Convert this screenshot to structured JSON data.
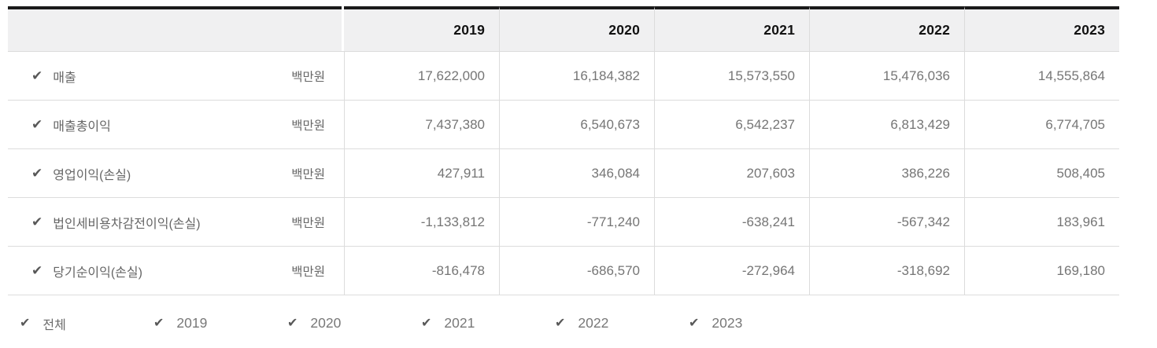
{
  "icons": {
    "check": "✔"
  },
  "table": {
    "years": [
      "2019",
      "2020",
      "2021",
      "2022",
      "2023"
    ],
    "rows": [
      {
        "label": "매출",
        "unit": "백만원",
        "checked": true,
        "values": [
          "17,622,000",
          "16,184,382",
          "15,573,550",
          "15,476,036",
          "14,555,864"
        ]
      },
      {
        "label": "매출총이익",
        "unit": "백만원",
        "checked": true,
        "values": [
          "7,437,380",
          "6,540,673",
          "6,542,237",
          "6,813,429",
          "6,774,705"
        ]
      },
      {
        "label": "영업이익(손실)",
        "unit": "백만원",
        "checked": true,
        "values": [
          "427,911",
          "346,084",
          "207,603",
          "386,226",
          "508,405"
        ]
      },
      {
        "label": "법인세비용차감전이익(손실)",
        "unit": "백만원",
        "checked": true,
        "values": [
          "-1,133,812",
          "-771,240",
          "-638,241",
          "-567,342",
          "183,961"
        ]
      },
      {
        "label": "당기순이익(손실)",
        "unit": "백만원",
        "checked": true,
        "values": [
          "-816,478",
          "-686,570",
          "-272,964",
          "-318,692",
          "169,180"
        ]
      }
    ]
  },
  "filters": {
    "items": [
      {
        "label": "전체",
        "checked": true
      },
      {
        "label": "2019",
        "checked": true
      },
      {
        "label": "2020",
        "checked": true
      },
      {
        "label": "2021",
        "checked": true
      },
      {
        "label": "2022",
        "checked": true
      },
      {
        "label": "2023",
        "checked": true
      }
    ]
  },
  "colors": {
    "top_border": "#1a1a1a",
    "header_bg": "#f0f0f1",
    "divider": "#dcdcdc",
    "header_text": "#121212",
    "value_text": "#757575",
    "label_text": "#666666",
    "check": "#585858"
  }
}
